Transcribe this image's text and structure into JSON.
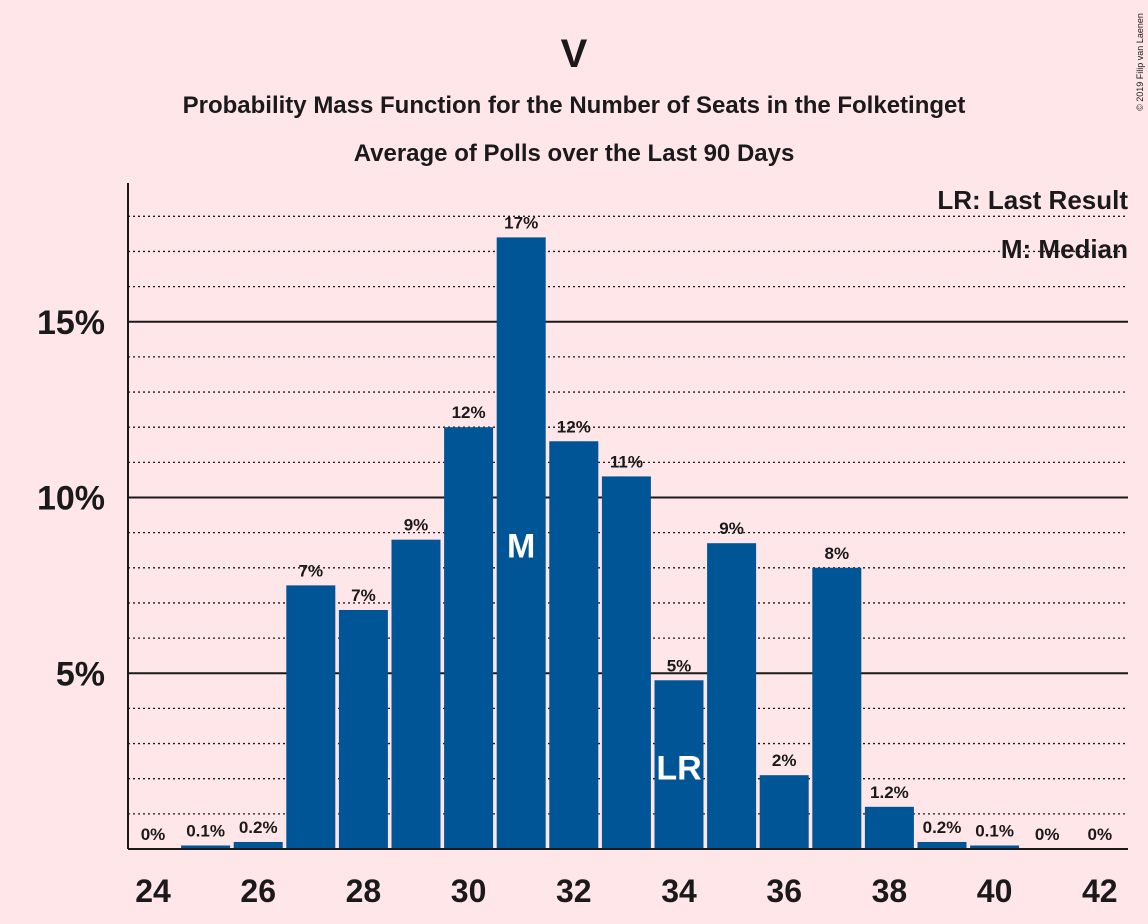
{
  "title": "V",
  "subtitle_line1": "Probability Mass Function for the Number of Seats in the Folketinget",
  "subtitle_line2": "Average of Polls over the Last 90 Days",
  "copyright": "© 2019 Filip van Laenen",
  "legend": {
    "last_result": "LR: Last Result",
    "median": "M: Median"
  },
  "colors": {
    "background": "#FFE6E9",
    "bar": "#005596",
    "text": "#1a1a1a"
  },
  "chart_data": {
    "type": "bar",
    "x": [
      24,
      25,
      26,
      27,
      28,
      29,
      30,
      31,
      32,
      33,
      34,
      35,
      36,
      37,
      38,
      39,
      40,
      41,
      42
    ],
    "values": [
      0,
      0.1,
      0.2,
      7.5,
      6.8,
      8.8,
      12.0,
      17.4,
      11.6,
      10.6,
      4.8,
      8.7,
      2.1,
      8.0,
      1.2,
      0.2,
      0.1,
      0,
      0
    ],
    "labels": [
      "0%",
      "0.1%",
      "0.2%",
      "7%",
      "7%",
      "9%",
      "12%",
      "17%",
      "12%",
      "11%",
      "5%",
      "9%",
      "2%",
      "8%",
      "1.2%",
      "0.2%",
      "0.1%",
      "0%",
      "0%"
    ],
    "xticks": [
      24,
      26,
      28,
      30,
      32,
      34,
      36,
      38,
      40,
      42
    ],
    "yticks": [
      {
        "value": 5,
        "label": "5%"
      },
      {
        "value": 10,
        "label": "10%"
      },
      {
        "value": 15,
        "label": "15%"
      }
    ],
    "minor_gridlines_step": 1,
    "ylim": [
      0,
      19
    ],
    "median_seat": 31,
    "median_label": "M",
    "last_result_seat": 34,
    "last_result_label": "LR"
  }
}
